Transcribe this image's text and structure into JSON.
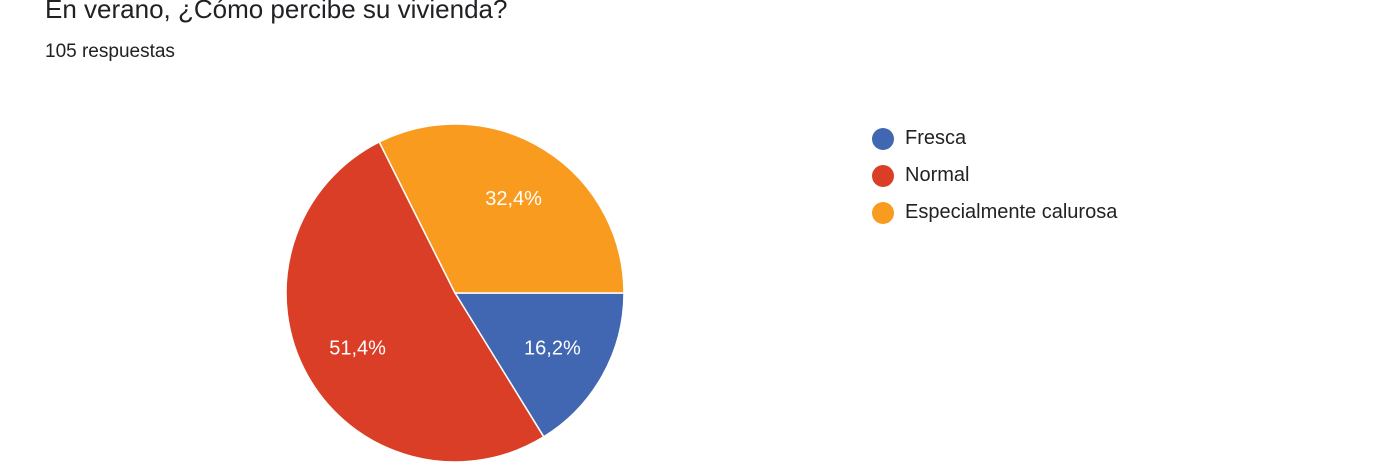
{
  "title": "En verano, ¿Cómo percibe su vivienda?",
  "subtitle": "105 respuestas",
  "chart_data": {
    "type": "pie",
    "categories": [
      "Fresca",
      "Normal",
      "Especialmente calurosa"
    ],
    "values": [
      16.2,
      51.4,
      32.4
    ],
    "labels": [
      "16,2%",
      "51,4%",
      "32,4%"
    ],
    "colors": [
      "#4267b2",
      "#db3e26",
      "#f99b1e"
    ],
    "start": "3 o'clock, clockwise",
    "legend_position": "right"
  }
}
